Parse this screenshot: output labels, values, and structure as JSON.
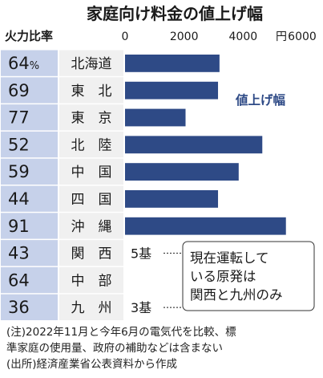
{
  "chart_data": {
    "type": "bar",
    "title": "家庭向け料金の値上げ幅",
    "col_header": "火力比率",
    "axis_unit": "円",
    "x_ticks": [
      0,
      2000,
      4000,
      6000
    ],
    "xlim": [
      0,
      6000
    ],
    "series_label": "値上げ幅",
    "grid": false,
    "categories": [
      "北海道",
      "東　北",
      "東　京",
      "北　陸",
      "中　国",
      "四　国",
      "沖　縄",
      "関　西",
      "中　部",
      "九　州"
    ],
    "thermal_ratio": [
      "64",
      "69",
      "77",
      "52",
      "59",
      "44",
      "91",
      "43",
      "64",
      "36"
    ],
    "ratio_unit": "%",
    "values": [
      3200,
      3150,
      2050,
      4650,
      3850,
      3150,
      5450,
      null,
      null,
      null
    ],
    "nuclear_counts": [
      {
        "region": "関　西",
        "label": "5基"
      },
      {
        "region": "九　州",
        "label": "3基"
      }
    ],
    "note_box": [
      "現在運転して",
      "いる原発は",
      "関西と九州のみ"
    ]
  },
  "notes": {
    "line1": "(注)2022年11月と今年6月の電気代を比較、標",
    "line2": "準家庭の使用量、政府の補助などは含まない",
    "line3": "(出所)経済産業省公表資料から作成"
  },
  "colors": {
    "bar": "#2e4a86",
    "ratio_bg": "#c6d1ea",
    "label_bg": "#f0f0f0",
    "text": "#1a1a1a",
    "note_bg": "#ffffff"
  }
}
